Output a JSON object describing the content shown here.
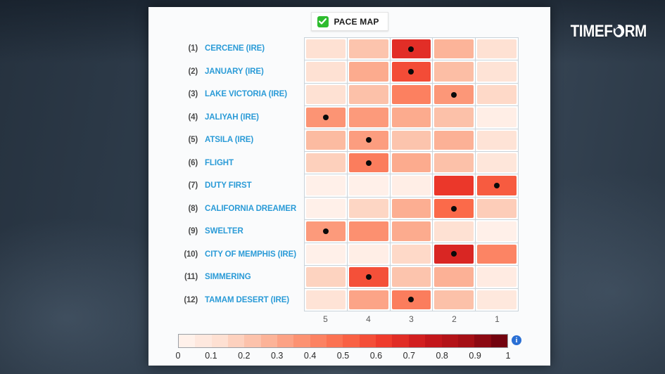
{
  "logo": {
    "left": "TIMEF",
    "right": "RM"
  },
  "toggle": {
    "label": "PACE MAP",
    "checked": true,
    "check_color": "#2ebc2e"
  },
  "chart_data": {
    "type": "heatmap",
    "title": "PACE MAP",
    "columns": [
      "5",
      "4",
      "3",
      "2",
      "1"
    ],
    "rows": [
      {
        "number": "(1)",
        "name": "CERCENE (IRE)",
        "values": [
          0.12,
          0.22,
          0.67,
          0.27,
          0.12
        ],
        "dot_index": 2
      },
      {
        "number": "(2)",
        "name": "JANUARY (IRE)",
        "values": [
          0.12,
          0.3,
          0.58,
          0.24,
          0.11
        ],
        "dot_index": 2
      },
      {
        "number": "(3)",
        "name": "LAKE VICTORIA (IRE)",
        "values": [
          0.12,
          0.23,
          0.43,
          0.36,
          0.15
        ],
        "dot_index": 3
      },
      {
        "number": "(4)",
        "name": "JALIYAH (IRE)",
        "values": [
          0.37,
          0.35,
          0.3,
          0.23,
          0.04
        ],
        "dot_index": 0
      },
      {
        "number": "(5)",
        "name": "ATSILA (IRE)",
        "values": [
          0.25,
          0.34,
          0.22,
          0.28,
          0.11
        ],
        "dot_index": 1
      },
      {
        "number": "(6)",
        "name": "FLIGHT",
        "values": [
          0.18,
          0.44,
          0.3,
          0.23,
          0.09
        ],
        "dot_index": 1
      },
      {
        "number": "(7)",
        "name": "DUTY FIRST",
        "values": [
          0.03,
          0.03,
          0.04,
          0.64,
          0.54
        ],
        "dot_index": 4
      },
      {
        "number": "(8)",
        "name": "CALIFORNIA DREAMER",
        "values": [
          0.03,
          0.16,
          0.29,
          0.5,
          0.19
        ],
        "dot_index": 3
      },
      {
        "number": "(9)",
        "name": "SWELTER",
        "values": [
          0.35,
          0.38,
          0.3,
          0.12,
          0.03
        ],
        "dot_index": 0
      },
      {
        "number": "(10)",
        "name": "CITY OF MEMPHIS (IRE)",
        "values": [
          0.03,
          0.04,
          0.15,
          0.7,
          0.42
        ],
        "dot_index": 3
      },
      {
        "number": "(11)",
        "name": "SIMMERING",
        "values": [
          0.17,
          0.57,
          0.22,
          0.28,
          0.06
        ],
        "dot_index": 1
      },
      {
        "number": "(12)",
        "name": "TAMAM DESERT (IRE)",
        "values": [
          0.11,
          0.32,
          0.44,
          0.23,
          0.08
        ],
        "dot_index": 2
      }
    ],
    "colorscale": {
      "name": "Reds",
      "min": 0,
      "max": 1,
      "steps": 20,
      "anchors": [
        "#fff5f0",
        "#fee0d2",
        "#fcbba1",
        "#fc9272",
        "#fb6a4a",
        "#ef3b2c",
        "#cb181d",
        "#a50f15",
        "#67000d"
      ],
      "ticks": [
        "0",
        "0.1",
        "0.2",
        "0.3",
        "0.4",
        "0.5",
        "0.6",
        "0.7",
        "0.8",
        "0.9",
        "1"
      ]
    }
  },
  "legend": {
    "info_glyph": "i"
  },
  "colors": {
    "horse_name_blue": "#2b9bd7",
    "info_blue": "#2a6fd4",
    "card_bg": "#fafbfc"
  }
}
